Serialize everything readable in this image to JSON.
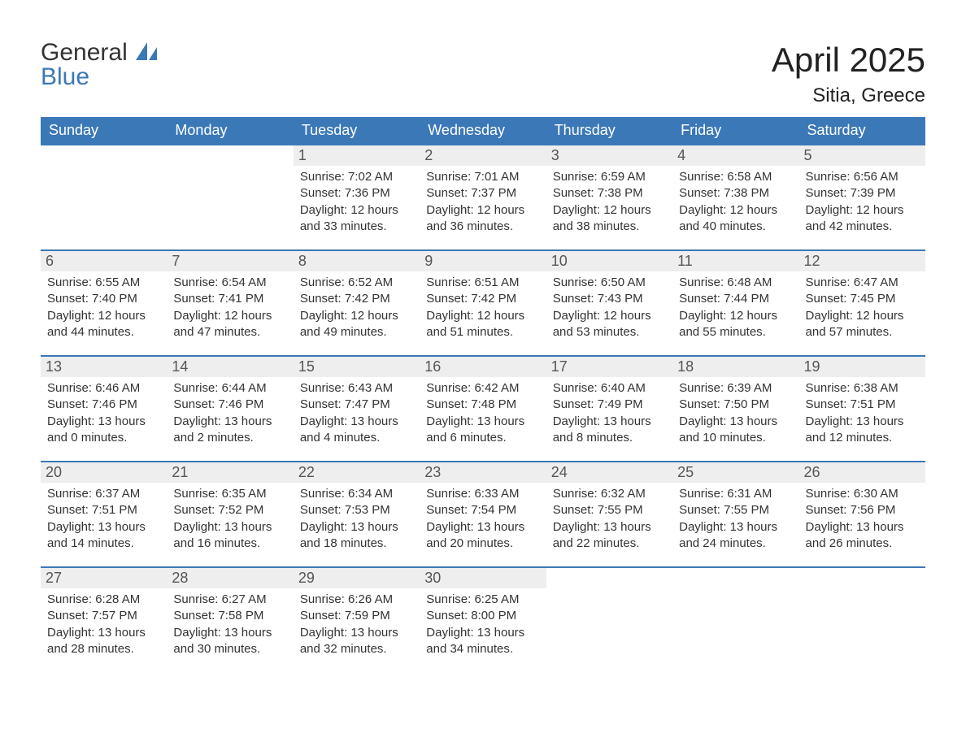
{
  "brand": {
    "general": "General",
    "blue": "Blue"
  },
  "title": "April 2025",
  "location": "Sitia, Greece",
  "colors": {
    "header_bg": "#3b78b8",
    "header_text": "#ffffff",
    "daynum_bg": "#eeeeee",
    "border": "#3b78b8",
    "text": "#333333",
    "page_bg": "#ffffff"
  },
  "days_of_week": [
    "Sunday",
    "Monday",
    "Tuesday",
    "Wednesday",
    "Thursday",
    "Friday",
    "Saturday"
  ],
  "weeks": [
    [
      null,
      null,
      {
        "n": "1",
        "sr": "Sunrise: 7:02 AM",
        "ss": "Sunset: 7:36 PM",
        "dl1": "Daylight: 12 hours",
        "dl2": "and 33 minutes."
      },
      {
        "n": "2",
        "sr": "Sunrise: 7:01 AM",
        "ss": "Sunset: 7:37 PM",
        "dl1": "Daylight: 12 hours",
        "dl2": "and 36 minutes."
      },
      {
        "n": "3",
        "sr": "Sunrise: 6:59 AM",
        "ss": "Sunset: 7:38 PM",
        "dl1": "Daylight: 12 hours",
        "dl2": "and 38 minutes."
      },
      {
        "n": "4",
        "sr": "Sunrise: 6:58 AM",
        "ss": "Sunset: 7:38 PM",
        "dl1": "Daylight: 12 hours",
        "dl2": "and 40 minutes."
      },
      {
        "n": "5",
        "sr": "Sunrise: 6:56 AM",
        "ss": "Sunset: 7:39 PM",
        "dl1": "Daylight: 12 hours",
        "dl2": "and 42 minutes."
      }
    ],
    [
      {
        "n": "6",
        "sr": "Sunrise: 6:55 AM",
        "ss": "Sunset: 7:40 PM",
        "dl1": "Daylight: 12 hours",
        "dl2": "and 44 minutes."
      },
      {
        "n": "7",
        "sr": "Sunrise: 6:54 AM",
        "ss": "Sunset: 7:41 PM",
        "dl1": "Daylight: 12 hours",
        "dl2": "and 47 minutes."
      },
      {
        "n": "8",
        "sr": "Sunrise: 6:52 AM",
        "ss": "Sunset: 7:42 PM",
        "dl1": "Daylight: 12 hours",
        "dl2": "and 49 minutes."
      },
      {
        "n": "9",
        "sr": "Sunrise: 6:51 AM",
        "ss": "Sunset: 7:42 PM",
        "dl1": "Daylight: 12 hours",
        "dl2": "and 51 minutes."
      },
      {
        "n": "10",
        "sr": "Sunrise: 6:50 AM",
        "ss": "Sunset: 7:43 PM",
        "dl1": "Daylight: 12 hours",
        "dl2": "and 53 minutes."
      },
      {
        "n": "11",
        "sr": "Sunrise: 6:48 AM",
        "ss": "Sunset: 7:44 PM",
        "dl1": "Daylight: 12 hours",
        "dl2": "and 55 minutes."
      },
      {
        "n": "12",
        "sr": "Sunrise: 6:47 AM",
        "ss": "Sunset: 7:45 PM",
        "dl1": "Daylight: 12 hours",
        "dl2": "and 57 minutes."
      }
    ],
    [
      {
        "n": "13",
        "sr": "Sunrise: 6:46 AM",
        "ss": "Sunset: 7:46 PM",
        "dl1": "Daylight: 13 hours",
        "dl2": "and 0 minutes."
      },
      {
        "n": "14",
        "sr": "Sunrise: 6:44 AM",
        "ss": "Sunset: 7:46 PM",
        "dl1": "Daylight: 13 hours",
        "dl2": "and 2 minutes."
      },
      {
        "n": "15",
        "sr": "Sunrise: 6:43 AM",
        "ss": "Sunset: 7:47 PM",
        "dl1": "Daylight: 13 hours",
        "dl2": "and 4 minutes."
      },
      {
        "n": "16",
        "sr": "Sunrise: 6:42 AM",
        "ss": "Sunset: 7:48 PM",
        "dl1": "Daylight: 13 hours",
        "dl2": "and 6 minutes."
      },
      {
        "n": "17",
        "sr": "Sunrise: 6:40 AM",
        "ss": "Sunset: 7:49 PM",
        "dl1": "Daylight: 13 hours",
        "dl2": "and 8 minutes."
      },
      {
        "n": "18",
        "sr": "Sunrise: 6:39 AM",
        "ss": "Sunset: 7:50 PM",
        "dl1": "Daylight: 13 hours",
        "dl2": "and 10 minutes."
      },
      {
        "n": "19",
        "sr": "Sunrise: 6:38 AM",
        "ss": "Sunset: 7:51 PM",
        "dl1": "Daylight: 13 hours",
        "dl2": "and 12 minutes."
      }
    ],
    [
      {
        "n": "20",
        "sr": "Sunrise: 6:37 AM",
        "ss": "Sunset: 7:51 PM",
        "dl1": "Daylight: 13 hours",
        "dl2": "and 14 minutes."
      },
      {
        "n": "21",
        "sr": "Sunrise: 6:35 AM",
        "ss": "Sunset: 7:52 PM",
        "dl1": "Daylight: 13 hours",
        "dl2": "and 16 minutes."
      },
      {
        "n": "22",
        "sr": "Sunrise: 6:34 AM",
        "ss": "Sunset: 7:53 PM",
        "dl1": "Daylight: 13 hours",
        "dl2": "and 18 minutes."
      },
      {
        "n": "23",
        "sr": "Sunrise: 6:33 AM",
        "ss": "Sunset: 7:54 PM",
        "dl1": "Daylight: 13 hours",
        "dl2": "and 20 minutes."
      },
      {
        "n": "24",
        "sr": "Sunrise: 6:32 AM",
        "ss": "Sunset: 7:55 PM",
        "dl1": "Daylight: 13 hours",
        "dl2": "and 22 minutes."
      },
      {
        "n": "25",
        "sr": "Sunrise: 6:31 AM",
        "ss": "Sunset: 7:55 PM",
        "dl1": "Daylight: 13 hours",
        "dl2": "and 24 minutes."
      },
      {
        "n": "26",
        "sr": "Sunrise: 6:30 AM",
        "ss": "Sunset: 7:56 PM",
        "dl1": "Daylight: 13 hours",
        "dl2": "and 26 minutes."
      }
    ],
    [
      {
        "n": "27",
        "sr": "Sunrise: 6:28 AM",
        "ss": "Sunset: 7:57 PM",
        "dl1": "Daylight: 13 hours",
        "dl2": "and 28 minutes."
      },
      {
        "n": "28",
        "sr": "Sunrise: 6:27 AM",
        "ss": "Sunset: 7:58 PM",
        "dl1": "Daylight: 13 hours",
        "dl2": "and 30 minutes."
      },
      {
        "n": "29",
        "sr": "Sunrise: 6:26 AM",
        "ss": "Sunset: 7:59 PM",
        "dl1": "Daylight: 13 hours",
        "dl2": "and 32 minutes."
      },
      {
        "n": "30",
        "sr": "Sunrise: 6:25 AM",
        "ss": "Sunset: 8:00 PM",
        "dl1": "Daylight: 13 hours",
        "dl2": "and 34 minutes."
      },
      null,
      null,
      null
    ]
  ]
}
